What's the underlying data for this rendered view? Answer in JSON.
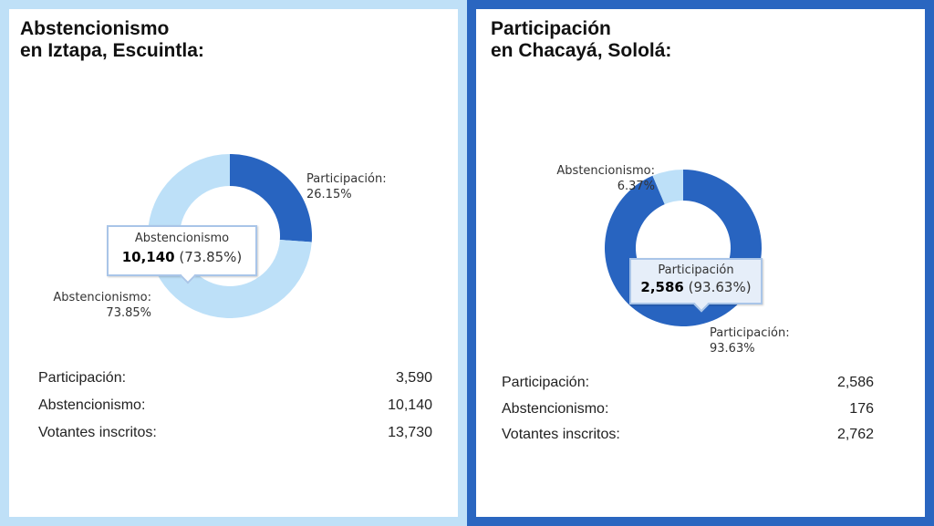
{
  "colors": {
    "participacion": "#2864c0",
    "abstencionismo": "#bde0f8"
  },
  "chart_data": [
    {
      "type": "pie",
      "title": "Abstencionismo en Iztapa, Escuintla:",
      "title_lines": [
        "Abstencionismo",
        "en Iztapa, Escuintla:"
      ],
      "slices": [
        {
          "name": "Participación",
          "value": 3590,
          "percent": 26.15,
          "label": "Participación:",
          "pct_label": "26.15%"
        },
        {
          "name": "Abstencionismo",
          "value": 10140,
          "percent": 73.85,
          "label": "Abstencionismo:",
          "pct_label": "73.85%"
        }
      ],
      "tooltip": {
        "name": "Abstencionismo",
        "value": "10,140",
        "pct": "(73.85%)"
      },
      "stats": [
        {
          "label": "Participación:",
          "value": "3,590"
        },
        {
          "label": "Abstencionismo:",
          "value": "10,140"
        },
        {
          "label": "Votantes inscritos:",
          "value": "13,730"
        }
      ]
    },
    {
      "type": "pie",
      "title": "Participación en Chacayá, Sololá:",
      "title_lines": [
        "Participación",
        "en Chacayá, Sololá:"
      ],
      "slices": [
        {
          "name": "Participación",
          "value": 2586,
          "percent": 93.63,
          "label": "Participación:",
          "pct_label": "93.63%"
        },
        {
          "name": "Abstencionismo",
          "value": 176,
          "percent": 6.37,
          "label": "Abstencionismo:",
          "pct_label": "6.37%"
        }
      ],
      "tooltip": {
        "name": "Participación",
        "value": "2,586",
        "pct": "(93.63%)"
      },
      "stats": [
        {
          "label": "Participación:",
          "value": "2,586"
        },
        {
          "label": "Abstencionismo:",
          "value": "176"
        },
        {
          "label": "Votantes inscritos:",
          "value": "2,762"
        }
      ]
    }
  ]
}
